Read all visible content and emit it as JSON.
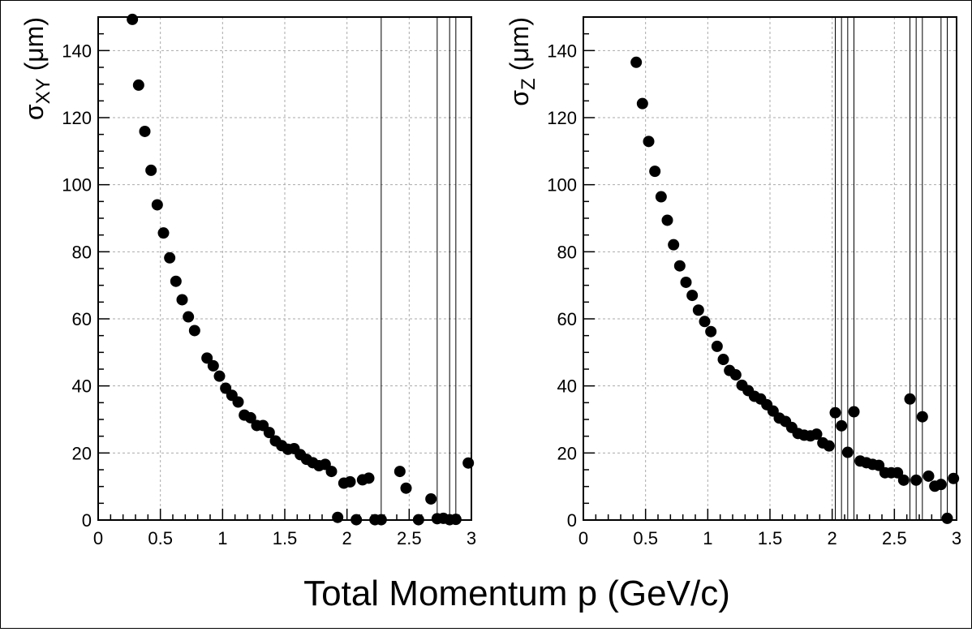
{
  "figure": {
    "xlabel": "Total Momentum p (GeV/c)"
  },
  "chart_data": [
    {
      "type": "scatter",
      "ylabel_main": "σ",
      "ylabel_sub": "XY",
      "ylabel_unit": "(μm)",
      "xlim": [
        0,
        3
      ],
      "ylim": [
        0,
        150
      ],
      "xticks": [
        0,
        0.5,
        1,
        1.5,
        2,
        2.5,
        3
      ],
      "xtick_labels": [
        "0",
        "0.5",
        "1",
        "1.5",
        "2",
        "2.5",
        "3"
      ],
      "yticks": [
        0,
        20,
        40,
        60,
        80,
        100,
        120,
        140
      ],
      "ytick_labels": [
        "0",
        "20",
        "40",
        "60",
        "80",
        "100",
        "120",
        "140"
      ],
      "grid": true,
      "vertical_lines": [
        2.275,
        2.725,
        2.825,
        2.875
      ],
      "x": [
        0.275,
        0.325,
        0.375,
        0.425,
        0.475,
        0.525,
        0.575,
        0.625,
        0.675,
        0.725,
        0.775,
        0.875,
        0.925,
        0.975,
        1.025,
        1.075,
        1.125,
        1.175,
        1.225,
        1.275,
        1.325,
        1.375,
        1.425,
        1.475,
        1.525,
        1.575,
        1.625,
        1.675,
        1.725,
        1.775,
        1.825,
        1.875,
        1.925,
        1.975,
        2.025,
        2.075,
        2.125,
        2.175,
        2.225,
        2.275,
        2.425,
        2.475,
        2.575,
        2.675,
        2.725,
        2.775,
        2.825,
        2.875,
        2.975
      ],
      "y": [
        149.3,
        129.7,
        115.9,
        104.3,
        94.0,
        85.6,
        78.2,
        71.2,
        65.7,
        60.6,
        56.5,
        48.3,
        46.0,
        42.9,
        39.3,
        37.2,
        35.2,
        31.3,
        30.5,
        28.2,
        28.2,
        26.1,
        23.6,
        22.2,
        21.1,
        21.3,
        19.5,
        18.1,
        17.1,
        16.2,
        16.6,
        14.5,
        0.8,
        11.0,
        11.4,
        0.1,
        12.0,
        12.5,
        0.1,
        0.1,
        14.5,
        9.5,
        0.1,
        6.3,
        0.4,
        0.5,
        0.1,
        0.2,
        17.0
      ]
    },
    {
      "type": "scatter",
      "ylabel_main": "σ",
      "ylabel_sub": "Z",
      "ylabel_unit": "(μm)",
      "xlim": [
        0,
        3
      ],
      "ylim": [
        0,
        150
      ],
      "xticks": [
        0,
        0.5,
        1,
        1.5,
        2,
        2.5,
        3
      ],
      "xtick_labels": [
        "0",
        "0.5",
        "1",
        "1.5",
        "2",
        "2.5",
        "3"
      ],
      "yticks": [
        0,
        20,
        40,
        60,
        80,
        100,
        120,
        140
      ],
      "ytick_labels": [
        "0",
        "20",
        "40",
        "60",
        "80",
        "100",
        "120",
        "140"
      ],
      "grid": true,
      "vertical_lines": [
        2.025,
        2.075,
        2.125,
        2.175,
        2.625,
        2.675,
        2.725,
        2.875,
        2.925
      ],
      "x": [
        0.425,
        0.475,
        0.525,
        0.575,
        0.625,
        0.675,
        0.725,
        0.775,
        0.825,
        0.875,
        0.925,
        0.975,
        1.025,
        1.075,
        1.125,
        1.175,
        1.225,
        1.275,
        1.325,
        1.375,
        1.425,
        1.475,
        1.525,
        1.575,
        1.625,
        1.675,
        1.725,
        1.775,
        1.825,
        1.875,
        1.925,
        1.975,
        2.025,
        2.075,
        2.125,
        2.175,
        2.225,
        2.275,
        2.325,
        2.375,
        2.425,
        2.475,
        2.525,
        2.575,
        2.625,
        2.675,
        2.725,
        2.775,
        2.825,
        2.875,
        2.925,
        2.975
      ],
      "y": [
        136.5,
        124.2,
        112.9,
        104.0,
        96.4,
        89.4,
        82.1,
        75.8,
        70.9,
        67.0,
        62.6,
        59.2,
        56.2,
        51.8,
        47.9,
        44.6,
        43.3,
        40.2,
        38.6,
        36.9,
        36.1,
        34.4,
        32.5,
        30.4,
        29.4,
        27.6,
        25.8,
        25.3,
        25.1,
        25.6,
        23.0,
        22.1,
        32.0,
        28.1,
        20.2,
        32.3,
        17.6,
        17.1,
        16.6,
        16.3,
        14.1,
        14.1,
        14.1,
        11.9,
        36.1,
        11.9,
        30.8,
        13.1,
        10.1,
        10.6,
        0.5,
        12.4
      ]
    }
  ]
}
